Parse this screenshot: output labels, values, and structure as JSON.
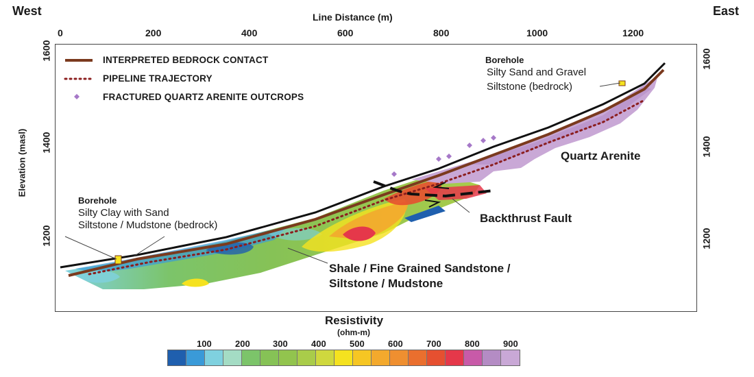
{
  "header": {
    "left_label": "West",
    "right_label": "East",
    "top_axis_title": "Line Distance (m)"
  },
  "axes": {
    "x_ticks": [
      "0",
      "200",
      "400",
      "600",
      "800",
      "1000",
      "1200"
    ],
    "y_left_title": "Elevation (masl)",
    "y_left_ticks": [
      "1600",
      "1400",
      "1200"
    ],
    "y_right_ticks": [
      "1600",
      "1400",
      "1200"
    ]
  },
  "legend": {
    "items": [
      {
        "label": "INTERPRETED BEDROCK CONTACT",
        "icon": "solid-brown-line",
        "color": "#7b3a1e"
      },
      {
        "label": "PIPELINE TRAJECTORY",
        "icon": "dotted-line",
        "color": "#8b1e1e"
      },
      {
        "label": "FRACTURED QUARTZ ARENITE OUTCROPS",
        "icon": "diamond-marker",
        "color": "#a678c8"
      }
    ]
  },
  "annotations": {
    "borehole_east": {
      "title": "Borehole",
      "line1": "Silty Sand and Gravel",
      "line2": "Siltstone (bedrock)"
    },
    "borehole_west": {
      "title": "Borehole",
      "line1": "Silty Clay with Sand",
      "line2": "Siltstone / Mudstone (bedrock)"
    },
    "quartz_arenite": "Quartz Arenite",
    "backthrust_fault": "Backthrust Fault",
    "shale_line1": "Shale / Fine Grained Sandstone /",
    "shale_line2": "Siltstone / Mudstone"
  },
  "colorbar": {
    "title": "Resistivity",
    "unit": "(ohm-m)",
    "tick_labels": [
      "100",
      "200",
      "300",
      "400",
      "500",
      "600",
      "700",
      "800",
      "900"
    ],
    "colors": [
      "#1f5fae",
      "#3a9ad8",
      "#7fd1df",
      "#a4dcc4",
      "#7cc46a",
      "#86c256",
      "#92c44e",
      "#a9cc4a",
      "#cfd83e",
      "#f5e21f",
      "#f6c623",
      "#f3a92d",
      "#ef8f30",
      "#ea6f2e",
      "#e65030",
      "#e5384a",
      "#c85aa8",
      "#b48cc4",
      "#c9a8d6"
    ]
  }
}
